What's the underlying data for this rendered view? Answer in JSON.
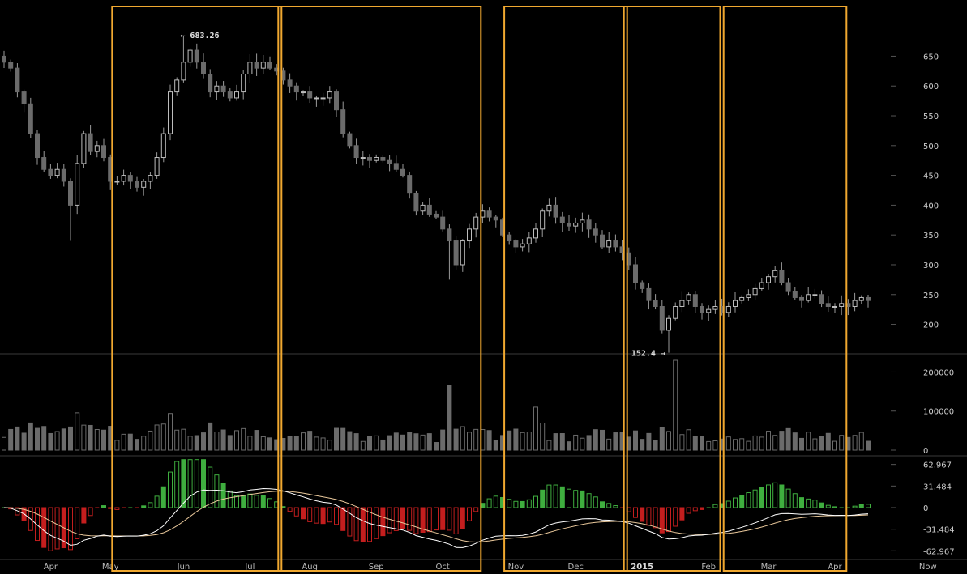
{
  "chart_data": {
    "type": "candlestick",
    "price_axis": {
      "ticks": [
        "650",
        "600",
        "550",
        "500",
        "450",
        "400",
        "350",
        "300",
        "250",
        "200"
      ],
      "range": [
        160,
        690
      ]
    },
    "volume_axis": {
      "ticks": [
        "200000",
        "100000",
        "0"
      ],
      "range": [
        0,
        230000
      ]
    },
    "macd_axis": {
      "ticks": [
        "62.967",
        "31.484",
        "0",
        "-31.484",
        "-62.967"
      ],
      "range": [
        -72,
        72
      ]
    },
    "x_labels": [
      {
        "label": "Apr",
        "i": 7
      },
      {
        "label": "May",
        "i": 16
      },
      {
        "label": "Jun",
        "i": 27
      },
      {
        "label": "Jul",
        "i": 37
      },
      {
        "label": "Aug",
        "i": 46
      },
      {
        "label": "Sep",
        "i": 56
      },
      {
        "label": "Oct",
        "i": 66
      },
      {
        "label": "Nov",
        "i": 77
      },
      {
        "label": "Dec",
        "i": 86
      },
      {
        "label": "2015",
        "i": 96,
        "bold": true
      },
      {
        "label": "Feb",
        "i": 106
      },
      {
        "label": "Mar",
        "i": 115
      },
      {
        "label": "Apr",
        "i": 125
      },
      {
        "label": "Now",
        "i": 139
      }
    ],
    "annotations": [
      {
        "text": "← 683.26",
        "i": 27,
        "value": 683.26,
        "side": "right"
      },
      {
        "text": "152.4 →",
        "i": 100,
        "value": 152.4,
        "side": "left"
      }
    ],
    "highlight_ranges": [
      [
        17,
        41
      ],
      [
        42,
        71
      ],
      [
        76,
        93
      ],
      [
        94,
        107
      ],
      [
        109,
        126
      ]
    ],
    "colors": {
      "up": "#000000",
      "down": "#6b6b6b",
      "wick": "#9a9a9a",
      "volume": "#6b6b6b",
      "macd_pos": "#3fae3f",
      "macd_neg": "#c41e1e",
      "macd_line": "#ffffff",
      "signal_line": "#e8c79a",
      "highlight": "#f0a830",
      "grid": "#3a3a3a"
    },
    "close": [
      640,
      630,
      590,
      570,
      520,
      480,
      460,
      450,
      460,
      440,
      400,
      470,
      520,
      490,
      500,
      480,
      440,
      440,
      450,
      440,
      430,
      440,
      450,
      480,
      520,
      590,
      610,
      640,
      660,
      640,
      620,
      590,
      600,
      590,
      580,
      590,
      620,
      640,
      630,
      640,
      630,
      625,
      610,
      600,
      590,
      590,
      580,
      580,
      580,
      590,
      560,
      520,
      500,
      480,
      480,
      475,
      480,
      475,
      470,
      460,
      450,
      420,
      390,
      400,
      385,
      380,
      360,
      340,
      300,
      340,
      360,
      380,
      390,
      380,
      375,
      350,
      340,
      330,
      335,
      345,
      360,
      390,
      400,
      380,
      370,
      365,
      370,
      375,
      360,
      350,
      330,
      340,
      330,
      320,
      300,
      270,
      260,
      240,
      230,
      190,
      210,
      230,
      240,
      250,
      230,
      220,
      225,
      230,
      220,
      230,
      240,
      245,
      250,
      260,
      270,
      280,
      290,
      270,
      255,
      245,
      240,
      250,
      250,
      235,
      230,
      230,
      235,
      230,
      240,
      245,
      240
    ]
  }
}
